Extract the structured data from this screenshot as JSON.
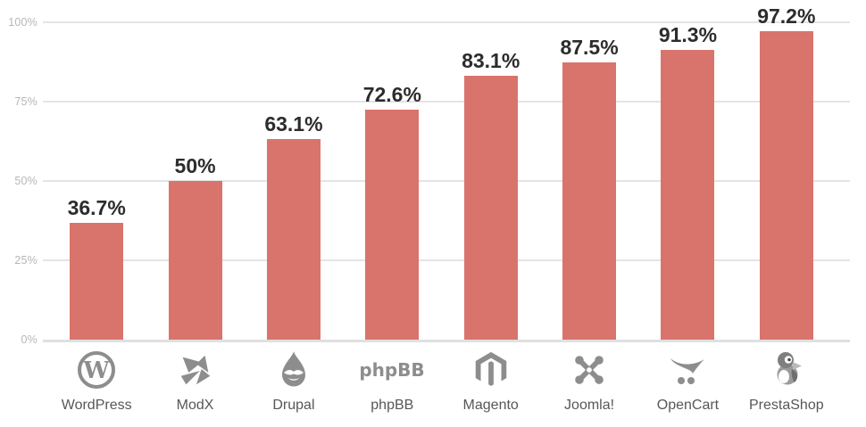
{
  "chart_data": {
    "type": "bar",
    "categories": [
      "WordPress",
      "ModX",
      "Drupal",
      "phpBB",
      "Magento",
      "Joomla!",
      "OpenCart",
      "PrestaShop"
    ],
    "values": [
      36.7,
      50,
      63.1,
      72.6,
      83.1,
      87.5,
      91.3,
      97.2
    ],
    "value_labels": [
      "36.7%",
      "50%",
      "63.1%",
      "72.6%",
      "83.1%",
      "87.5%",
      "91.3%",
      "97.2%"
    ],
    "icons": [
      "wordpress-logo",
      "modx-logo",
      "drupal-logo",
      "phpbb-logo",
      "magento-logo",
      "joomla-logo",
      "opencart-logo",
      "prestashop-logo"
    ],
    "title": "",
    "xlabel": "",
    "ylabel": "",
    "ylim": [
      0,
      100
    ],
    "yticks": [
      0,
      25,
      50,
      75,
      100
    ],
    "ytick_labels": [
      "0%",
      "25%",
      "50%",
      "75%",
      "100%"
    ],
    "grid": true,
    "legend": false,
    "bar_color": "#d9746c"
  },
  "colors": {
    "bar": "#d9746c",
    "gridline": "#e4e4e4",
    "axis_tick_text": "#b7b7b7",
    "value_label_text": "#2c2c2c",
    "category_label_text": "#565759",
    "logo_gray": "#8d8d8d",
    "background": "#ffffff"
  }
}
